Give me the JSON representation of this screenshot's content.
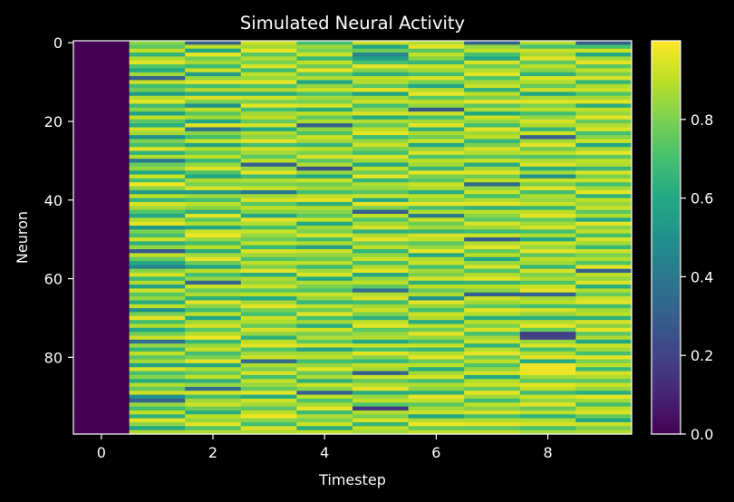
{
  "chart_data": {
    "type": "heatmap",
    "title": "Simulated Neural Activity",
    "xlabel": "Timestep",
    "ylabel": "Neuron",
    "x_ticks": [
      0,
      2,
      4,
      6,
      8
    ],
    "y_ticks": [
      0,
      20,
      40,
      60,
      80
    ],
    "x_range": [
      -0.5,
      9.5
    ],
    "y_range": [
      -0.5,
      99.5
    ],
    "y_inverted": true,
    "n_timesteps": 10,
    "n_neurons": 100,
    "colormap": "viridis",
    "colorbar": {
      "range": [
        0.0,
        1.0
      ],
      "ticks": [
        "0.0",
        "0.2",
        "0.4",
        "0.6",
        "0.8"
      ]
    },
    "timestep_0_value": 0.0,
    "background": "#000000",
    "foreground": "#ffffff",
    "values": [
      [
        0.0,
        0.0,
        0.0,
        0.0,
        0.0,
        0.0,
        0.0,
        0.0,
        0.0,
        0.0,
        0.0,
        0.0,
        0.0,
        0.0,
        0.0,
        0.0,
        0.0,
        0.0,
        0.0,
        0.0,
        0.0,
        0.0,
        0.0,
        0.0,
        0.0,
        0.0,
        0.0,
        0.0,
        0.0,
        0.0,
        0.0,
        0.0,
        0.0,
        0.0,
        0.0,
        0.0,
        0.0,
        0.0,
        0.0,
        0.0,
        0.0,
        0.0,
        0.0,
        0.0,
        0.0,
        0.0,
        0.0,
        0.0,
        0.0,
        0.0,
        0.0,
        0.0,
        0.0,
        0.0,
        0.0,
        0.0,
        0.0,
        0.0,
        0.0,
        0.0,
        0.0,
        0.0,
        0.0,
        0.0,
        0.0,
        0.0,
        0.0,
        0.0,
        0.0,
        0.0,
        0.0,
        0.0,
        0.0,
        0.0,
        0.0,
        0.0,
        0.0,
        0.0,
        0.0,
        0.0,
        0.0,
        0.0,
        0.0,
        0.0,
        0.0,
        0.0,
        0.0,
        0.0,
        0.0,
        0.0,
        0.0,
        0.0,
        0.0,
        0.0,
        0.0,
        0.0,
        0.0,
        0.0,
        0.0,
        0.0
      ],
      [
        0.82,
        0.75,
        0.9,
        0.65,
        0.88,
        0.95,
        0.72,
        0.6,
        0.85,
        0.3,
        0.92,
        0.7,
        0.78,
        0.55,
        0.88,
        0.96,
        0.68,
        0.82,
        0.58,
        0.9,
        0.74,
        0.62,
        0.93,
        0.86,
        0.5,
        0.8,
        0.7,
        0.95,
        0.64,
        0.88,
        0.4,
        0.76,
        0.84,
        0.6,
        0.92,
        0.7,
        0.98,
        0.82,
        0.55,
        0.9,
        0.66,
        0.94,
        0.86,
        0.72,
        0.6,
        0.88,
        0.96,
        0.52,
        0.8,
        0.7,
        0.92,
        0.64,
        0.84,
        0.28,
        0.9,
        0.76,
        0.6,
        0.45,
        0.82,
        0.94,
        0.68,
        0.88,
        0.56,
        0.92,
        0.74,
        0.84,
        0.62,
        0.9,
        0.5,
        0.8,
        0.96,
        0.7,
        0.88,
        0.6,
        0.78,
        0.92,
        0.35,
        0.84,
        0.66,
        0.9,
        0.74,
        0.86,
        0.58,
        0.94,
        0.7,
        0.82,
        0.62,
        0.88,
        0.76,
        0.92,
        0.5,
        0.3,
        0.84,
        0.7,
        0.9,
        0.64,
        0.96,
        0.82,
        0.6,
        0.88
      ],
      [
        0.3,
        0.9,
        0.6,
        0.97,
        0.78,
        0.86,
        0.68,
        0.92,
        0.55,
        0.84,
        0.96,
        0.7,
        0.88,
        0.62,
        0.94,
        0.8,
        0.5,
        0.9,
        0.74,
        0.86,
        0.6,
        0.96,
        0.38,
        0.82,
        0.7,
        0.92,
        0.58,
        0.88,
        0.76,
        0.9,
        0.66,
        0.84,
        0.95,
        0.72,
        0.6,
        0.88,
        0.8,
        0.94,
        0.54,
        0.86,
        0.7,
        0.9,
        0.82,
        0.64,
        0.96,
        0.74,
        0.88,
        0.6,
        0.92,
        0.98,
        0.84,
        0.7,
        0.9,
        0.62,
        0.86,
        0.96,
        0.78,
        0.58,
        0.9,
        0.7,
        0.84,
        0.32,
        0.92,
        0.76,
        0.88,
        0.64,
        0.96,
        0.82,
        0.7,
        0.9,
        0.6,
        0.86,
        0.94,
        0.74,
        0.88,
        0.98,
        0.66,
        0.84,
        0.92,
        0.7,
        0.8,
        0.96,
        0.6,
        0.88,
        0.76,
        0.9,
        0.64,
        0.84,
        0.35,
        0.94,
        0.7,
        0.86,
        0.92,
        0.78,
        0.62,
        0.9,
        0.84,
        0.96,
        0.72,
        0.88
      ],
      [
        0.92,
        0.86,
        0.96,
        0.74,
        0.88,
        0.8,
        0.94,
        0.68,
        0.9,
        0.84,
        0.97,
        0.72,
        0.88,
        0.62,
        0.92,
        0.8,
        0.96,
        0.7,
        0.86,
        0.9,
        0.76,
        0.94,
        0.6,
        0.88,
        0.82,
        0.96,
        0.7,
        0.92,
        0.86,
        0.74,
        0.9,
        0.3,
        0.84,
        0.96,
        0.68,
        0.88,
        0.8,
        0.92,
        0.4,
        0.86,
        0.94,
        0.74,
        0.9,
        0.82,
        0.6,
        0.96,
        0.88,
        0.7,
        0.92,
        0.84,
        0.78,
        0.9,
        0.66,
        0.94,
        0.86,
        0.72,
        0.9,
        0.8,
        0.96,
        0.62,
        0.88,
        0.84,
        0.92,
        0.74,
        0.9,
        0.6,
        0.86,
        0.96,
        0.8,
        0.7,
        0.92,
        0.88,
        0.76,
        0.94,
        0.84,
        0.64,
        0.9,
        0.96,
        0.72,
        0.86,
        0.92,
        0.34,
        0.88,
        0.8,
        0.94,
        0.7,
        0.9,
        0.84,
        0.76,
        0.96,
        0.62,
        0.92,
        0.86,
        0.74,
        0.9,
        0.98,
        0.82,
        0.7,
        0.94,
        0.88
      ],
      [
        0.7,
        0.85,
        0.8,
        0.92,
        0.66,
        0.9,
        0.78,
        0.96,
        0.74,
        0.88,
        0.6,
        0.84,
        0.92,
        0.7,
        0.86,
        0.8,
        0.94,
        0.62,
        0.9,
        0.76,
        0.88,
        0.3,
        0.84,
        0.72,
        0.92,
        0.86,
        0.66,
        0.9,
        0.8,
        0.94,
        0.74,
        0.88,
        0.25,
        0.84,
        0.6,
        0.92,
        0.78,
        0.86,
        0.7,
        0.9,
        0.96,
        0.64,
        0.88,
        0.82,
        0.74,
        0.92,
        0.6,
        0.86,
        0.8,
        0.94,
        0.7,
        0.88,
        0.56,
        0.92,
        0.84,
        0.76,
        0.9,
        0.68,
        0.86,
        0.94,
        0.6,
        0.88,
        0.8,
        0.72,
        0.92,
        0.84,
        0.66,
        0.9,
        0.78,
        0.96,
        0.7,
        0.86,
        0.62,
        0.92,
        0.8,
        0.88,
        0.74,
        0.94,
        0.58,
        0.86,
        0.9,
        0.7,
        0.84,
        0.96,
        0.76,
        0.88,
        0.64,
        0.92,
        0.82,
        0.3,
        0.9,
        0.72,
        0.86,
        0.96,
        0.68,
        0.88,
        0.8,
        0.92,
        0.62,
        0.9
      ],
      [
        0.92,
        0.6,
        0.78,
        0.45,
        0.55,
        0.7,
        0.96,
        0.82,
        0.64,
        0.9,
        0.88,
        0.74,
        0.96,
        0.58,
        0.86,
        0.92,
        0.7,
        0.84,
        0.94,
        0.62,
        0.88,
        0.76,
        0.9,
        0.96,
        0.68,
        0.84,
        0.92,
        0.8,
        0.7,
        0.94,
        0.86,
        0.6,
        0.9,
        0.78,
        0.96,
        0.66,
        0.88,
        0.84,
        0.74,
        0.92,
        0.6,
        0.96,
        0.8,
        0.3,
        0.9,
        0.72,
        0.86,
        0.94,
        0.64,
        0.88,
        0.96,
        0.78,
        0.9,
        0.66,
        0.84,
        0.92,
        0.7,
        0.88,
        0.96,
        0.6,
        0.84,
        0.9,
        0.74,
        0.35,
        0.88,
        0.94,
        0.68,
        0.86,
        0.92,
        0.8,
        0.64,
        0.9,
        0.96,
        0.74,
        0.84,
        0.88,
        0.6,
        0.92,
        0.7,
        0.96,
        0.82,
        0.66,
        0.9,
        0.86,
        0.3,
        0.92,
        0.76,
        0.88,
        0.96,
        0.62,
        0.84,
        0.9,
        0.72,
        0.15,
        0.88,
        0.8,
        0.94,
        0.66,
        0.9,
        0.86
      ],
      [
        0.88,
        0.96,
        0.74,
        0.9,
        0.82,
        0.66,
        0.92,
        0.86,
        0.7,
        0.94,
        0.8,
        0.6,
        0.88,
        0.96,
        0.74,
        0.9,
        0.84,
        0.28,
        0.92,
        0.7,
        0.86,
        0.96,
        0.64,
        0.88,
        0.78,
        0.92,
        0.6,
        0.84,
        0.94,
        0.72,
        0.9,
        0.86,
        0.66,
        0.96,
        0.8,
        0.74,
        0.92,
        0.88,
        0.62,
        0.9,
        0.84,
        0.96,
        0.7,
        0.88,
        0.42,
        0.92,
        0.78,
        0.86,
        0.66,
        0.94,
        0.9,
        0.74,
        0.84,
        0.96,
        0.6,
        0.88,
        0.92,
        0.7,
        0.86,
        0.8,
        0.94,
        0.64,
        0.9,
        0.76,
        0.88,
        0.5,
        0.96,
        0.84,
        0.7,
        0.92,
        0.88,
        0.62,
        0.9,
        0.78,
        0.96,
        0.84,
        0.7,
        0.92,
        0.66,
        0.88,
        0.96,
        0.76,
        0.9,
        0.62,
        0.86,
        0.94,
        0.7,
        0.88,
        0.82,
        0.64,
        0.96,
        0.9,
        0.74,
        0.86,
        0.92,
        0.6,
        0.88,
        0.97,
        0.76,
        0.9
      ],
      [
        0.3,
        0.84,
        0.9,
        0.7,
        0.6,
        0.94,
        0.78,
        0.88,
        0.96,
        0.72,
        0.86,
        0.92,
        0.64,
        0.9,
        0.8,
        0.96,
        0.74,
        0.88,
        0.6,
        0.92,
        0.84,
        0.7,
        0.96,
        0.86,
        0.9,
        0.66,
        0.8,
        0.94,
        0.88,
        0.74,
        0.92,
        0.62,
        0.86,
        0.96,
        0.78,
        0.9,
        0.34,
        0.84,
        0.92,
        0.7,
        0.88,
        0.96,
        0.64,
        0.9,
        0.82,
        0.74,
        0.94,
        0.86,
        0.68,
        0.92,
        0.3,
        0.88,
        0.96,
        0.76,
        0.9,
        0.6,
        0.84,
        0.94,
        0.72,
        0.88,
        0.96,
        0.66,
        0.9,
        0.82,
        0.3,
        0.92,
        0.86,
        0.74,
        0.96,
        0.88,
        0.62,
        0.9,
        0.8,
        0.94,
        0.7,
        0.86,
        0.92,
        0.64,
        0.88,
        0.96,
        0.78,
        0.9,
        0.72,
        0.84,
        0.94,
        0.6,
        0.88,
        0.92,
        0.76,
        0.96,
        0.86,
        0.68,
        0.9,
        0.82,
        0.94,
        0.7,
        0.88,
        0.96,
        0.74,
        0.9
      ],
      [
        0.88,
        0.7,
        0.92,
        0.86,
        0.96,
        0.74,
        0.9,
        0.82,
        0.64,
        0.94,
        0.88,
        0.76,
        0.92,
        0.6,
        0.86,
        0.96,
        0.8,
        0.9,
        0.7,
        0.84,
        0.94,
        0.88,
        0.66,
        0.92,
        0.3,
        0.86,
        0.96,
        0.78,
        0.9,
        0.72,
        0.88,
        0.94,
        0.62,
        0.86,
        0.5,
        0.92,
        0.8,
        0.96,
        0.7,
        0.88,
        0.84,
        0.92,
        0.66,
        0.9,
        0.96,
        0.76,
        0.86,
        0.94,
        0.7,
        0.88,
        0.6,
        0.92,
        0.84,
        0.96,
        0.74,
        0.9,
        0.86,
        0.66,
        0.94,
        0.8,
        0.88,
        0.72,
        0.92,
        0.96,
        0.3,
        0.86,
        0.9,
        0.7,
        0.94,
        0.84,
        0.64,
        0.88,
        0.96,
        0.76,
        0.18,
        0.2,
        0.84,
        0.94,
        0.7,
        0.88,
        0.96,
        0.6,
        0.98,
        0.98,
        0.97,
        0.86,
        0.74,
        0.96,
        0.9,
        0.68,
        0.92,
        0.84,
        0.96,
        0.76,
        0.9,
        0.64,
        0.88,
        0.94,
        0.7,
        0.86
      ],
      [
        0.3,
        0.7,
        0.92,
        0.6,
        0.86,
        0.96,
        0.74,
        0.9,
        0.8,
        0.94,
        0.66,
        0.88,
        0.92,
        0.72,
        0.86,
        0.96,
        0.62,
        0.9,
        0.84,
        0.96,
        0.76,
        0.88,
        0.94,
        0.7,
        0.82,
        0.92,
        0.6,
        0.86,
        0.96,
        0.74,
        0.9,
        0.88,
        0.66,
        0.94,
        0.8,
        0.92,
        0.7,
        0.86,
        0.96,
        0.64,
        0.9,
        0.84,
        0.92,
        0.74,
        0.88,
        0.6,
        0.96,
        0.82,
        0.9,
        0.7,
        0.94,
        0.86,
        0.66,
        0.92,
        0.8,
        0.88,
        0.72,
        0.96,
        0.3,
        0.9,
        0.84,
        0.94,
        0.62,
        0.88,
        0.76,
        0.92,
        0.96,
        0.7,
        0.86,
        0.9,
        0.64,
        0.94,
        0.82,
        0.96,
        0.74,
        0.88,
        0.6,
        0.92,
        0.86,
        0.7,
        0.96,
        0.8,
        0.9,
        0.66,
        0.94,
        0.88,
        0.74,
        0.92,
        0.84,
        0.62,
        0.96,
        0.86,
        0.7,
        0.9,
        0.94,
        0.76,
        0.6,
        0.92,
        0.8,
        0.88
      ]
    ]
  }
}
